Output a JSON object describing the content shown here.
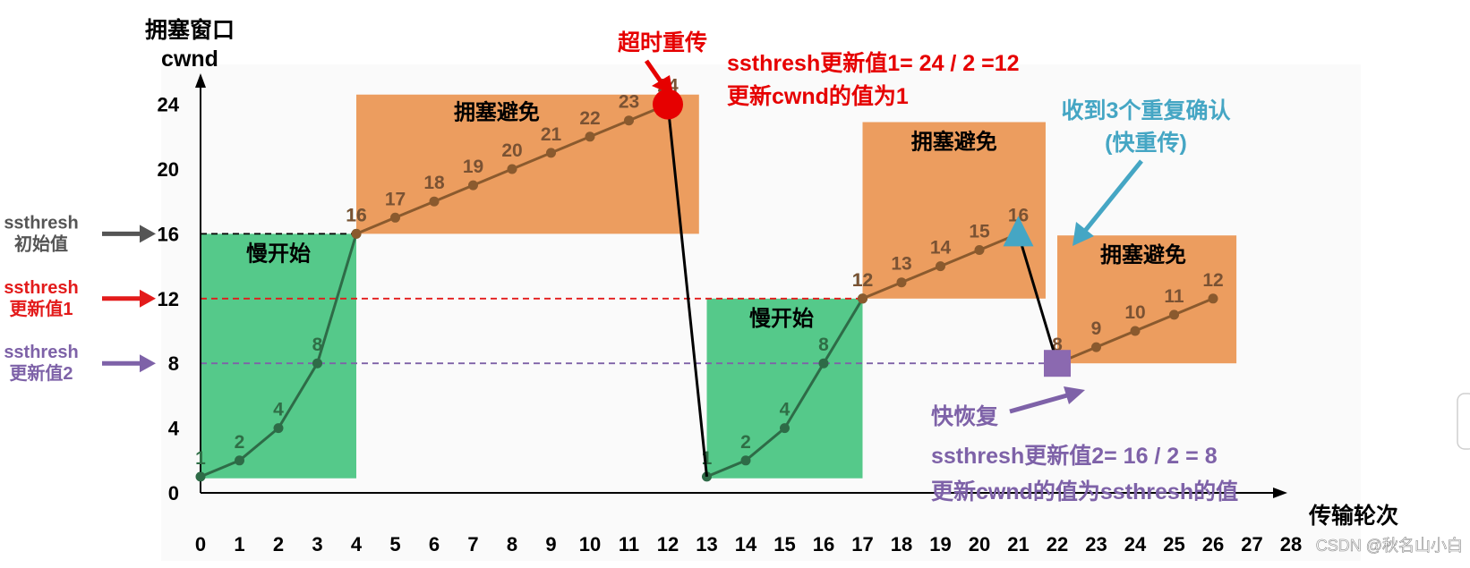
{
  "axes": {
    "y_label_line1": "拥塞窗口",
    "y_label_line2": "cwnd",
    "x_label": "传输轮次"
  },
  "colors": {
    "slow_start": "#55c98a",
    "congestion_avoidance": "#ec9d5f",
    "line": "#8a5a2e",
    "line_slow": "#2e6b47",
    "threshold_init": "#000000",
    "threshold_1": "#e31b1b",
    "threshold_2": "#7e62a8",
    "fast_retransmit_marker": "#45a6c4",
    "timeout_marker": "#e60000",
    "fast_recovery_marker": "#8b69b0"
  },
  "chart_data": {
    "type": "line",
    "x_ticks": [
      0,
      1,
      2,
      3,
      4,
      5,
      6,
      7,
      8,
      9,
      10,
      11,
      12,
      13,
      14,
      15,
      16,
      17,
      18,
      19,
      20,
      21,
      22,
      23,
      24,
      25,
      26,
      27,
      28
    ],
    "y_ticks": [
      0,
      4,
      8,
      12,
      16,
      20,
      24
    ],
    "xlim": [
      0,
      28
    ],
    "ylim": [
      0,
      24
    ],
    "segments": [
      {
        "points": [
          [
            0,
            1
          ],
          [
            1,
            2
          ],
          [
            2,
            4
          ],
          [
            3,
            8
          ],
          [
            4,
            16
          ]
        ],
        "labels": [
          "1",
          "2",
          "4",
          "8",
          "16"
        ],
        "style": "slow"
      },
      {
        "points": [
          [
            4,
            16
          ],
          [
            5,
            17
          ],
          [
            6,
            18
          ],
          [
            7,
            19
          ],
          [
            8,
            20
          ],
          [
            9,
            21
          ],
          [
            10,
            22
          ],
          [
            11,
            23
          ],
          [
            12,
            24
          ]
        ],
        "labels": [
          "16",
          "17",
          "18",
          "19",
          "20",
          "21",
          "22",
          "23",
          "24"
        ],
        "style": "avoid"
      },
      {
        "points": [
          [
            13,
            1
          ],
          [
            14,
            2
          ],
          [
            15,
            4
          ],
          [
            16,
            8
          ],
          [
            17,
            12
          ]
        ],
        "labels": [
          "1",
          "2",
          "4",
          "8",
          "12"
        ],
        "style": "slow"
      },
      {
        "points": [
          [
            17,
            12
          ],
          [
            18,
            13
          ],
          [
            19,
            14
          ],
          [
            20,
            15
          ],
          [
            21,
            16
          ]
        ],
        "labels": [
          "12",
          "13",
          "14",
          "15",
          "16"
        ],
        "style": "avoid"
      },
      {
        "points": [
          [
            22,
            8
          ],
          [
            23,
            9
          ],
          [
            24,
            10
          ],
          [
            25,
            11
          ],
          [
            26,
            12
          ]
        ],
        "labels": [
          "8",
          "9",
          "10",
          "11",
          "12"
        ],
        "style": "avoid"
      }
    ],
    "drops": [
      {
        "from": [
          12,
          24
        ],
        "to": [
          13,
          1
        ]
      },
      {
        "from": [
          21,
          16
        ],
        "to": [
          22,
          8
        ]
      }
    ],
    "thresholds": [
      {
        "y": 16,
        "x_end": 4,
        "color_key": "threshold_init"
      },
      {
        "y": 12,
        "x_end": 17,
        "color_key": "threshold_1"
      },
      {
        "y": 8,
        "x_end": 22,
        "color_key": "threshold_2"
      }
    ],
    "regions": [
      {
        "label": "慢开始",
        "x": [
          0,
          4
        ],
        "y": [
          0.9,
          16
        ],
        "kind": "slow"
      },
      {
        "label": "拥塞避免",
        "x": [
          4,
          12.8
        ],
        "y": [
          16,
          24.6
        ],
        "kind": "avoid"
      },
      {
        "label": "慢开始",
        "x": [
          13,
          17
        ],
        "y": [
          0.9,
          12
        ],
        "kind": "slow"
      },
      {
        "label": "拥塞避免",
        "x": [
          17,
          21.7
        ],
        "y": [
          12,
          22.9
        ],
        "kind": "avoid"
      },
      {
        "label": "拥塞避免",
        "x": [
          22,
          26.6
        ],
        "y": [
          8,
          15.9
        ],
        "kind": "avoid"
      }
    ],
    "markers": [
      {
        "shape": "circle",
        "at": [
          12,
          24
        ],
        "color_key": "timeout_marker"
      },
      {
        "shape": "triangle",
        "at": [
          21,
          16
        ],
        "color_key": "fast_retransmit_marker"
      },
      {
        "shape": "square",
        "at": [
          22,
          8
        ],
        "color_key": "fast_recovery_marker"
      }
    ]
  },
  "annotations": {
    "timeout": "超时重传",
    "ssthresh1_line1": "ssthresh更新值1= 24 / 2 =12",
    "ssthresh1_line2": "更新cwnd的值为1",
    "triple_ack_line1": "收到3个重复确认",
    "triple_ack_line2": "(快重传)",
    "fast_recovery": "快恢复",
    "ssthresh2_line1": "ssthresh更新值2= 16 / 2 = 8",
    "ssthresh2_line2": "更新cwnd的值为ssthresh的值"
  },
  "side_labels": [
    {
      "line1": "ssthresh",
      "line2": "初始值",
      "color_key": "threshold_init",
      "y": 16
    },
    {
      "line1": "ssthresh",
      "line2": "更新值1",
      "color_key": "threshold_1",
      "y": 12
    },
    {
      "line1": "ssthresh",
      "line2": "更新值2",
      "color_key": "threshold_2",
      "y": 8
    }
  ],
  "watermark": "CSDN @秋名山小白"
}
